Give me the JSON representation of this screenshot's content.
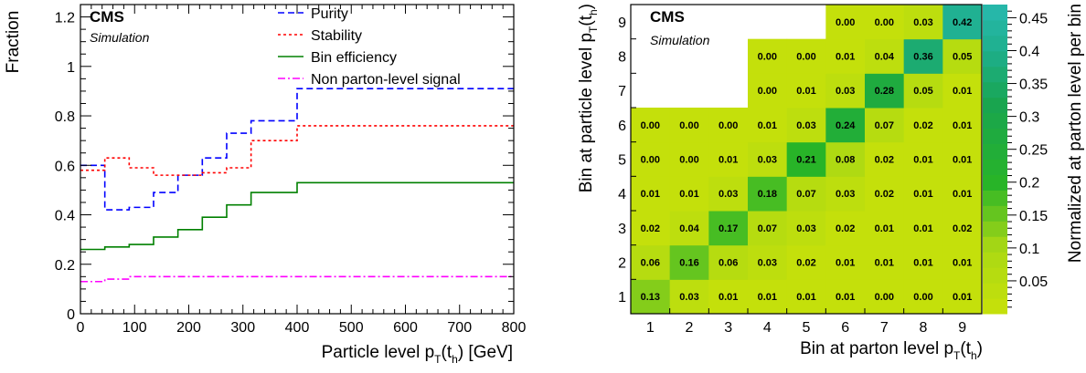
{
  "chart_data": [
    {
      "type": "line",
      "cms_label": "CMS",
      "sim_label": "Simulation",
      "ylabel": "Fraction",
      "xlabel_main": "Particle level p",
      "xlabel_sub1": "T",
      "xlabel_mid": "(t",
      "xlabel_sub2": "h",
      "xlabel_end": ") [GeV]",
      "xlim": [
        0,
        800
      ],
      "ylim": [
        0,
        1.25
      ],
      "xticks": [
        0,
        100,
        200,
        300,
        400,
        500,
        600,
        700,
        800
      ],
      "yticks": [
        0,
        0.2,
        0.4,
        0.6,
        0.8,
        1,
        1.2
      ],
      "bin_edges": [
        0,
        45,
        90,
        135,
        180,
        225,
        270,
        315,
        400,
        800
      ],
      "legend_position": "top-right",
      "series": [
        {
          "name": "Purity",
          "color": "#0000ff",
          "style": "dashed",
          "values": [
            0.6,
            0.42,
            0.43,
            0.49,
            0.56,
            0.63,
            0.73,
            0.78,
            0.91
          ]
        },
        {
          "name": "Stability",
          "color": "#ff0000",
          "style": "dotted",
          "values": [
            0.58,
            0.63,
            0.59,
            0.56,
            0.56,
            0.57,
            0.59,
            0.7,
            0.76
          ]
        },
        {
          "name": "Bin efficiency",
          "color": "#008000",
          "style": "solid",
          "values": [
            0.26,
            0.27,
            0.28,
            0.31,
            0.34,
            0.39,
            0.44,
            0.49,
            0.53
          ]
        },
        {
          "name": "Non parton-level signal",
          "color": "#ff00ff",
          "style": "dashdot",
          "values": [
            0.13,
            0.14,
            0.15,
            0.15,
            0.15,
            0.15,
            0.15,
            0.15,
            0.15
          ]
        }
      ]
    },
    {
      "type": "heatmap",
      "cms_label": "CMS",
      "sim_label": "Simulation",
      "xlabel_main": "Bin at parton level p",
      "xlabel_sub1": "T",
      "xlabel_mid": "(t",
      "xlabel_sub2": "h",
      "xlabel_end": ")",
      "ylabel_main": "Bin at particle level p",
      "ylabel_sub1": "T",
      "ylabel_mid": "(t",
      "ylabel_sub2": "h",
      "ylabel_end": ")",
      "zlabel": "Normalized at parton level per bin",
      "x_categories": [
        "1",
        "2",
        "3",
        "4",
        "5",
        "6",
        "7",
        "8",
        "9"
      ],
      "y_categories": [
        "1",
        "2",
        "3",
        "4",
        "5",
        "6",
        "7",
        "8",
        "9"
      ],
      "zlim": [
        0,
        0.47
      ],
      "zticks": [
        "0.05",
        "0.1",
        "0.15",
        "0.2",
        "0.25",
        "0.3",
        "0.35",
        "0.4",
        "0.45"
      ],
      "cells": [
        [
          "0.13",
          "0.03",
          "0.01",
          "0.01",
          "0.01",
          "0.01",
          "0.00",
          "0.00",
          "0.01"
        ],
        [
          "0.06",
          "0.16",
          "0.06",
          "0.03",
          "0.02",
          "0.01",
          "0.01",
          "0.01",
          "0.01"
        ],
        [
          "0.02",
          "0.04",
          "0.17",
          "0.07",
          "0.03",
          "0.02",
          "0.01",
          "0.01",
          "0.02"
        ],
        [
          "0.01",
          "0.01",
          "0.03",
          "0.18",
          "0.07",
          "0.03",
          "0.02",
          "0.01",
          "0.01"
        ],
        [
          "0.00",
          "0.00",
          "0.01",
          "0.03",
          "0.21",
          "0.08",
          "0.02",
          "0.01",
          "0.01"
        ],
        [
          "0.00",
          "0.00",
          "0.00",
          "0.01",
          "0.03",
          "0.24",
          "0.07",
          "0.02",
          "0.01"
        ],
        [
          "",
          "",
          "",
          "0.00",
          "0.01",
          "0.03",
          "0.28",
          "0.05",
          "0.01"
        ],
        [
          "",
          "",
          "",
          "0.00",
          "0.00",
          "0.01",
          "0.04",
          "0.36",
          "0.05"
        ],
        [
          "",
          "",
          "",
          "",
          "",
          "0.00",
          "0.00",
          "0.03",
          "0.42"
        ]
      ]
    }
  ]
}
